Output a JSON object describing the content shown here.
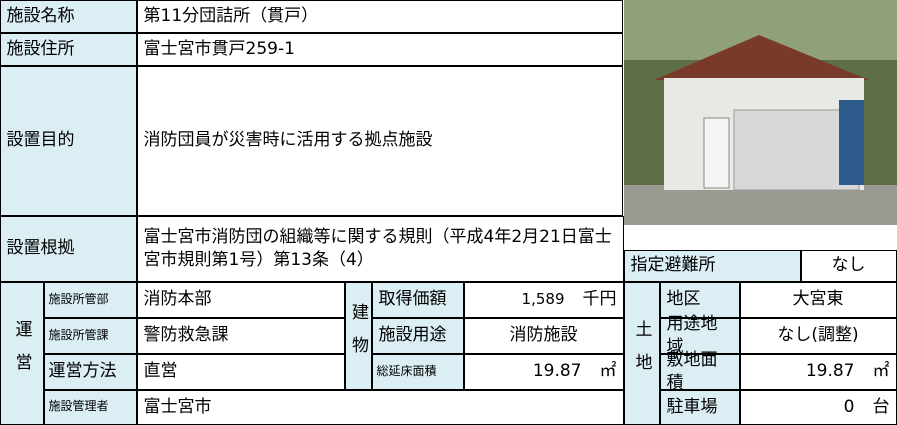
{
  "basic": [
    {
      "label": "施設名称",
      "value": "第11分団詰所（貫戸）"
    },
    {
      "label": "施設住所",
      "value": "富士宮市貫戸259-1"
    },
    {
      "label": "設置目的",
      "value": "消防団員が災害時に活用する拠点施設"
    },
    {
      "label": "設置根拠",
      "value": "富士宮市消防団の組織等に関する規則（平成4年2月21日富士宮市規則第1号）第13条（4）"
    }
  ],
  "evacuation": {
    "label": "指定避難所",
    "value": "なし"
  },
  "operation": {
    "label": "運営",
    "rows": [
      {
        "label": "施設所管部",
        "value": "消防本部"
      },
      {
        "label": "施設所管課",
        "value": "警防救急課"
      },
      {
        "label": "運営方法",
        "value": "直営"
      },
      {
        "label": "施設管理者",
        "value": "富士宮市"
      }
    ]
  },
  "building": {
    "label": "建物",
    "rows": [
      {
        "label": "取得価額",
        "value": "1,589",
        "unit": "千円"
      },
      {
        "label": "施設用途",
        "value": "消防施設"
      },
      {
        "label": "総延床面積",
        "value": "19.87",
        "unit": "㎡"
      }
    ]
  },
  "land": {
    "label": "土地",
    "rows": [
      {
        "label": "地区",
        "value": "大宮東"
      },
      {
        "label": "用途地域",
        "value": "なし(調整)"
      },
      {
        "label": "敷地面積",
        "value": "19.87",
        "unit": "㎡"
      },
      {
        "label": "駐車場",
        "value": "0",
        "unit": "台"
      }
    ]
  }
}
